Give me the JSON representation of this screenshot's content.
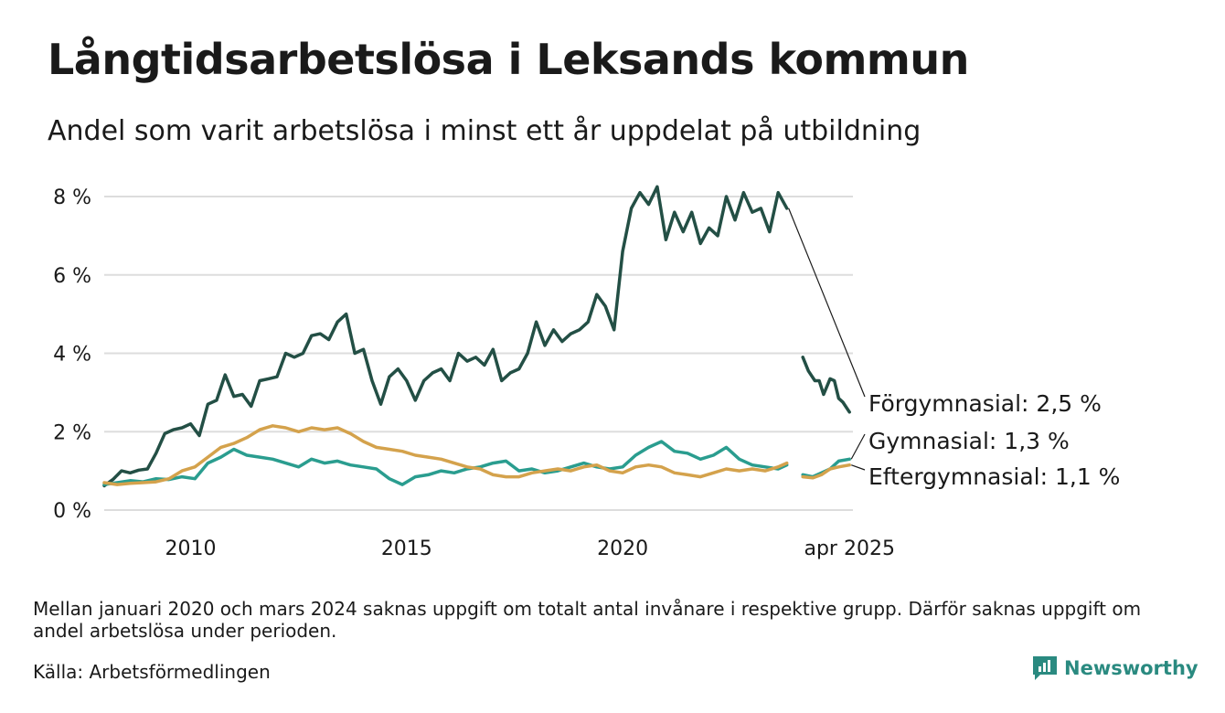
{
  "header": {
    "title": "Långtidsarbetslösa i Leksands kommun",
    "subtitle": "Andel som varit arbetslösa i minst ett år uppdelat på utbildning"
  },
  "footer": {
    "note": "Mellan januari 2020 och mars 2024 saknas uppgift om totalt antal invånare i respektive grupp. Därför saknas uppgift om andel arbetslösa under perioden.",
    "source": "Källa: Arbetsförmedlingen",
    "brand": "Newsworthy",
    "brand_color": "#2a8a80"
  },
  "chart_data": {
    "type": "line",
    "xlim": [
      2008.0,
      2025.33
    ],
    "ylim": [
      0,
      8.5
    ],
    "yticks": [
      0,
      2,
      4,
      6,
      8
    ],
    "ytick_labels": [
      "0 %",
      "2 %",
      "4 %",
      "6 %",
      "8 %"
    ],
    "xticks": [
      2010,
      2015,
      2020,
      2025.25
    ],
    "xtick_labels": [
      "2010",
      "2015",
      "2020",
      "apr 2025"
    ],
    "grid": true,
    "legend": "end-labels",
    "series": [
      {
        "name": "Förgymnasial",
        "end_label": "Förgymnasial: 2,5 %",
        "color": "#234f45",
        "segments": [
          [
            [
              2008.0,
              0.62
            ],
            [
              2008.2,
              0.78
            ],
            [
              2008.4,
              1.0
            ],
            [
              2008.6,
              0.95
            ],
            [
              2008.8,
              1.02
            ],
            [
              2009.0,
              1.05
            ],
            [
              2009.2,
              1.45
            ],
            [
              2009.4,
              1.95
            ],
            [
              2009.6,
              2.05
            ],
            [
              2009.8,
              2.1
            ],
            [
              2010.0,
              2.2
            ],
            [
              2010.2,
              1.9
            ],
            [
              2010.4,
              2.7
            ],
            [
              2010.6,
              2.8
            ],
            [
              2010.8,
              3.45
            ],
            [
              2011.0,
              2.9
            ],
            [
              2011.2,
              2.95
            ],
            [
              2011.4,
              2.65
            ],
            [
              2011.6,
              3.3
            ],
            [
              2011.8,
              3.35
            ],
            [
              2012.0,
              3.4
            ],
            [
              2012.2,
              4.0
            ],
            [
              2012.4,
              3.9
            ],
            [
              2012.6,
              4.0
            ],
            [
              2012.8,
              4.45
            ],
            [
              2013.0,
              4.5
            ],
            [
              2013.2,
              4.35
            ],
            [
              2013.4,
              4.8
            ],
            [
              2013.6,
              5.0
            ],
            [
              2013.8,
              4.0
            ],
            [
              2014.0,
              4.1
            ],
            [
              2014.2,
              3.3
            ],
            [
              2014.4,
              2.7
            ],
            [
              2014.6,
              3.4
            ],
            [
              2014.8,
              3.6
            ],
            [
              2015.0,
              3.3
            ],
            [
              2015.2,
              2.8
            ],
            [
              2015.4,
              3.3
            ],
            [
              2015.6,
              3.5
            ],
            [
              2015.8,
              3.6
            ],
            [
              2016.0,
              3.3
            ],
            [
              2016.2,
              4.0
            ],
            [
              2016.4,
              3.8
            ],
            [
              2016.6,
              3.9
            ],
            [
              2016.8,
              3.7
            ],
            [
              2017.0,
              4.1
            ],
            [
              2017.2,
              3.3
            ],
            [
              2017.4,
              3.5
            ],
            [
              2017.6,
              3.6
            ],
            [
              2017.8,
              4.0
            ],
            [
              2018.0,
              4.8
            ],
            [
              2018.2,
              4.2
            ],
            [
              2018.4,
              4.6
            ],
            [
              2018.6,
              4.3
            ],
            [
              2018.8,
              4.5
            ],
            [
              2019.0,
              4.6
            ],
            [
              2019.2,
              4.8
            ],
            [
              2019.4,
              5.5
            ],
            [
              2019.6,
              5.2
            ],
            [
              2019.8,
              4.6
            ],
            [
              2020.0,
              6.6
            ],
            [
              2020.2,
              7.7
            ],
            [
              2020.4,
              8.1
            ],
            [
              2020.6,
              7.8
            ],
            [
              2020.8,
              8.25
            ],
            [
              2021.0,
              6.9
            ],
            [
              2021.2,
              7.6
            ],
            [
              2021.4,
              7.1
            ],
            [
              2021.6,
              7.6
            ],
            [
              2021.8,
              6.8
            ],
            [
              2022.0,
              7.2
            ],
            [
              2022.2,
              7.0
            ],
            [
              2022.4,
              8.0
            ],
            [
              2022.6,
              7.4
            ],
            [
              2022.8,
              8.1
            ],
            [
              2023.0,
              7.6
            ],
            [
              2023.2,
              7.7
            ],
            [
              2023.4,
              7.1
            ],
            [
              2023.6,
              8.1
            ],
            [
              2023.8,
              7.7
            ]
          ]
        ]
      },
      {
        "name": "Gymnasial",
        "end_label": "Gymnasial: 1,3 %",
        "color": "#2a9d8f",
        "segments": [
          [
            [
              2008.0,
              0.65
            ],
            [
              2008.3,
              0.7
            ],
            [
              2008.6,
              0.75
            ],
            [
              2008.9,
              0.72
            ],
            [
              2009.2,
              0.8
            ],
            [
              2009.5,
              0.78
            ],
            [
              2009.8,
              0.85
            ],
            [
              2010.1,
              0.8
            ],
            [
              2010.4,
              1.2
            ],
            [
              2010.7,
              1.35
            ],
            [
              2011.0,
              1.55
            ],
            [
              2011.3,
              1.4
            ],
            [
              2011.6,
              1.35
            ],
            [
              2011.9,
              1.3
            ],
            [
              2012.2,
              1.2
            ],
            [
              2012.5,
              1.1
            ],
            [
              2012.8,
              1.3
            ],
            [
              2013.1,
              1.2
            ],
            [
              2013.4,
              1.25
            ],
            [
              2013.7,
              1.15
            ],
            [
              2014.0,
              1.1
            ],
            [
              2014.3,
              1.05
            ],
            [
              2014.6,
              0.8
            ],
            [
              2014.9,
              0.65
            ],
            [
              2015.2,
              0.85
            ],
            [
              2015.5,
              0.9
            ],
            [
              2015.8,
              1.0
            ],
            [
              2016.1,
              0.95
            ],
            [
              2016.4,
              1.05
            ],
            [
              2016.7,
              1.1
            ],
            [
              2017.0,
              1.2
            ],
            [
              2017.3,
              1.25
            ],
            [
              2017.6,
              1.0
            ],
            [
              2017.9,
              1.05
            ],
            [
              2018.2,
              0.95
            ],
            [
              2018.5,
              1.0
            ],
            [
              2018.8,
              1.1
            ],
            [
              2019.1,
              1.2
            ],
            [
              2019.4,
              1.1
            ],
            [
              2019.7,
              1.05
            ],
            [
              2020.0,
              1.1
            ],
            [
              2020.3,
              1.4
            ],
            [
              2020.6,
              1.6
            ],
            [
              2020.9,
              1.75
            ],
            [
              2021.2,
              1.5
            ],
            [
              2021.5,
              1.45
            ],
            [
              2021.8,
              1.3
            ],
            [
              2022.1,
              1.4
            ],
            [
              2022.4,
              1.6
            ],
            [
              2022.7,
              1.3
            ],
            [
              2023.0,
              1.15
            ],
            [
              2023.3,
              1.1
            ],
            [
              2023.6,
              1.05
            ],
            [
              2023.8,
              1.15
            ]
          ],
          [
            [
              2024.17,
              0.9
            ],
            [
              2024.4,
              0.85
            ],
            [
              2024.6,
              0.95
            ],
            [
              2024.8,
              1.05
            ],
            [
              2025.0,
              1.25
            ],
            [
              2025.25,
              1.3
            ]
          ]
        ]
      },
      {
        "name": "Eftergymnasial",
        "end_label": "Eftergymnasial: 1,1 %",
        "color": "#d4a24c",
        "segments": [
          [
            [
              2008.0,
              0.7
            ],
            [
              2008.3,
              0.65
            ],
            [
              2008.6,
              0.68
            ],
            [
              2008.9,
              0.7
            ],
            [
              2009.2,
              0.72
            ],
            [
              2009.5,
              0.8
            ],
            [
              2009.8,
              1.0
            ],
            [
              2010.1,
              1.1
            ],
            [
              2010.4,
              1.35
            ],
            [
              2010.7,
              1.6
            ],
            [
              2011.0,
              1.7
            ],
            [
              2011.3,
              1.85
            ],
            [
              2011.6,
              2.05
            ],
            [
              2011.9,
              2.15
            ],
            [
              2012.2,
              2.1
            ],
            [
              2012.5,
              2.0
            ],
            [
              2012.8,
              2.1
            ],
            [
              2013.1,
              2.05
            ],
            [
              2013.4,
              2.1
            ],
            [
              2013.7,
              1.95
            ],
            [
              2014.0,
              1.75
            ],
            [
              2014.3,
              1.6
            ],
            [
              2014.6,
              1.55
            ],
            [
              2014.9,
              1.5
            ],
            [
              2015.2,
              1.4
            ],
            [
              2015.5,
              1.35
            ],
            [
              2015.8,
              1.3
            ],
            [
              2016.1,
              1.2
            ],
            [
              2016.4,
              1.1
            ],
            [
              2016.7,
              1.05
            ],
            [
              2017.0,
              0.9
            ],
            [
              2017.3,
              0.85
            ],
            [
              2017.6,
              0.85
            ],
            [
              2017.9,
              0.95
            ],
            [
              2018.2,
              1.0
            ],
            [
              2018.5,
              1.05
            ],
            [
              2018.8,
              1.0
            ],
            [
              2019.1,
              1.1
            ],
            [
              2019.4,
              1.15
            ],
            [
              2019.7,
              1.0
            ],
            [
              2020.0,
              0.95
            ],
            [
              2020.3,
              1.1
            ],
            [
              2020.6,
              1.15
            ],
            [
              2020.9,
              1.1
            ],
            [
              2021.2,
              0.95
            ],
            [
              2021.5,
              0.9
            ],
            [
              2021.8,
              0.85
            ],
            [
              2022.1,
              0.95
            ],
            [
              2022.4,
              1.05
            ],
            [
              2022.7,
              1.0
            ],
            [
              2023.0,
              1.05
            ],
            [
              2023.3,
              1.0
            ],
            [
              2023.6,
              1.1
            ],
            [
              2023.8,
              1.2
            ]
          ],
          [
            [
              2024.17,
              0.85
            ],
            [
              2024.4,
              0.82
            ],
            [
              2024.6,
              0.9
            ],
            [
              2024.8,
              1.05
            ],
            [
              2025.0,
              1.1
            ],
            [
              2025.25,
              1.15
            ]
          ]
        ]
      },
      {
        "name": "Förgymnasial",
        "end_label": "",
        "color": "#234f45",
        "segments": [
          [
            [
              2024.17,
              3.9
            ],
            [
              2024.3,
              3.55
            ],
            [
              2024.45,
              3.3
            ],
            [
              2024.55,
              3.3
            ],
            [
              2024.65,
              2.95
            ],
            [
              2024.8,
              3.35
            ],
            [
              2024.9,
              3.3
            ],
            [
              2025.0,
              2.85
            ],
            [
              2025.1,
              2.75
            ],
            [
              2025.25,
              2.5
            ]
          ]
        ]
      }
    ]
  }
}
